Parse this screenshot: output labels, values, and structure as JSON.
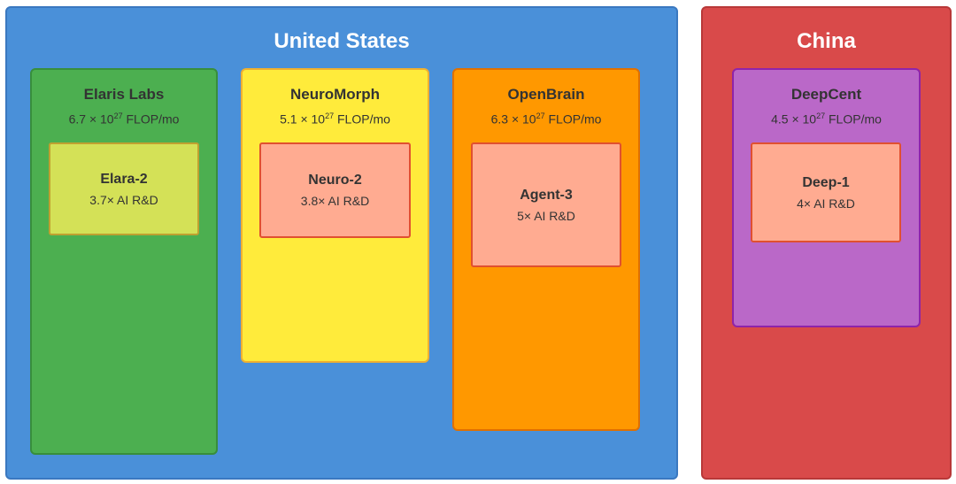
{
  "countries": [
    {
      "name": "United States",
      "color": "#4a90d9",
      "border": "#3a78c0"
    },
    {
      "name": "China",
      "color": "#d94a4a",
      "border": "#b83838"
    }
  ],
  "flop_unit": "FLOP/mo",
  "times": " × 10",
  "exp": "27",
  "labs": [
    {
      "name": "Elaris Labs",
      "flop": "6.7",
      "color": "#4caf50",
      "border": "#388e3c",
      "model": {
        "name": "Elara-2",
        "rd": "3.7× AI R&D",
        "color": "#d4e157",
        "border": "#c0a030"
      }
    },
    {
      "name": "NeuroMorph",
      "flop": "5.1",
      "color": "#ffeb3b",
      "border": "#f0b030",
      "model": {
        "name": "Neuro-2",
        "rd": "3.8× AI R&D",
        "color": "#ffab91",
        "border": "#e05030"
      }
    },
    {
      "name": "OpenBrain",
      "flop": "6.3",
      "color": "#ff9800",
      "border": "#e07000",
      "model": {
        "name": "Agent-3",
        "rd": "5× AI R&D",
        "color": "#ffab91",
        "border": "#e05030"
      }
    },
    {
      "name": "DeepCent",
      "flop": "4.5",
      "color": "#ba68c8",
      "border": "#8e24aa",
      "model": {
        "name": "Deep-1",
        "rd": "4× AI R&D",
        "color": "#ffab91",
        "border": "#e05030"
      }
    }
  ]
}
